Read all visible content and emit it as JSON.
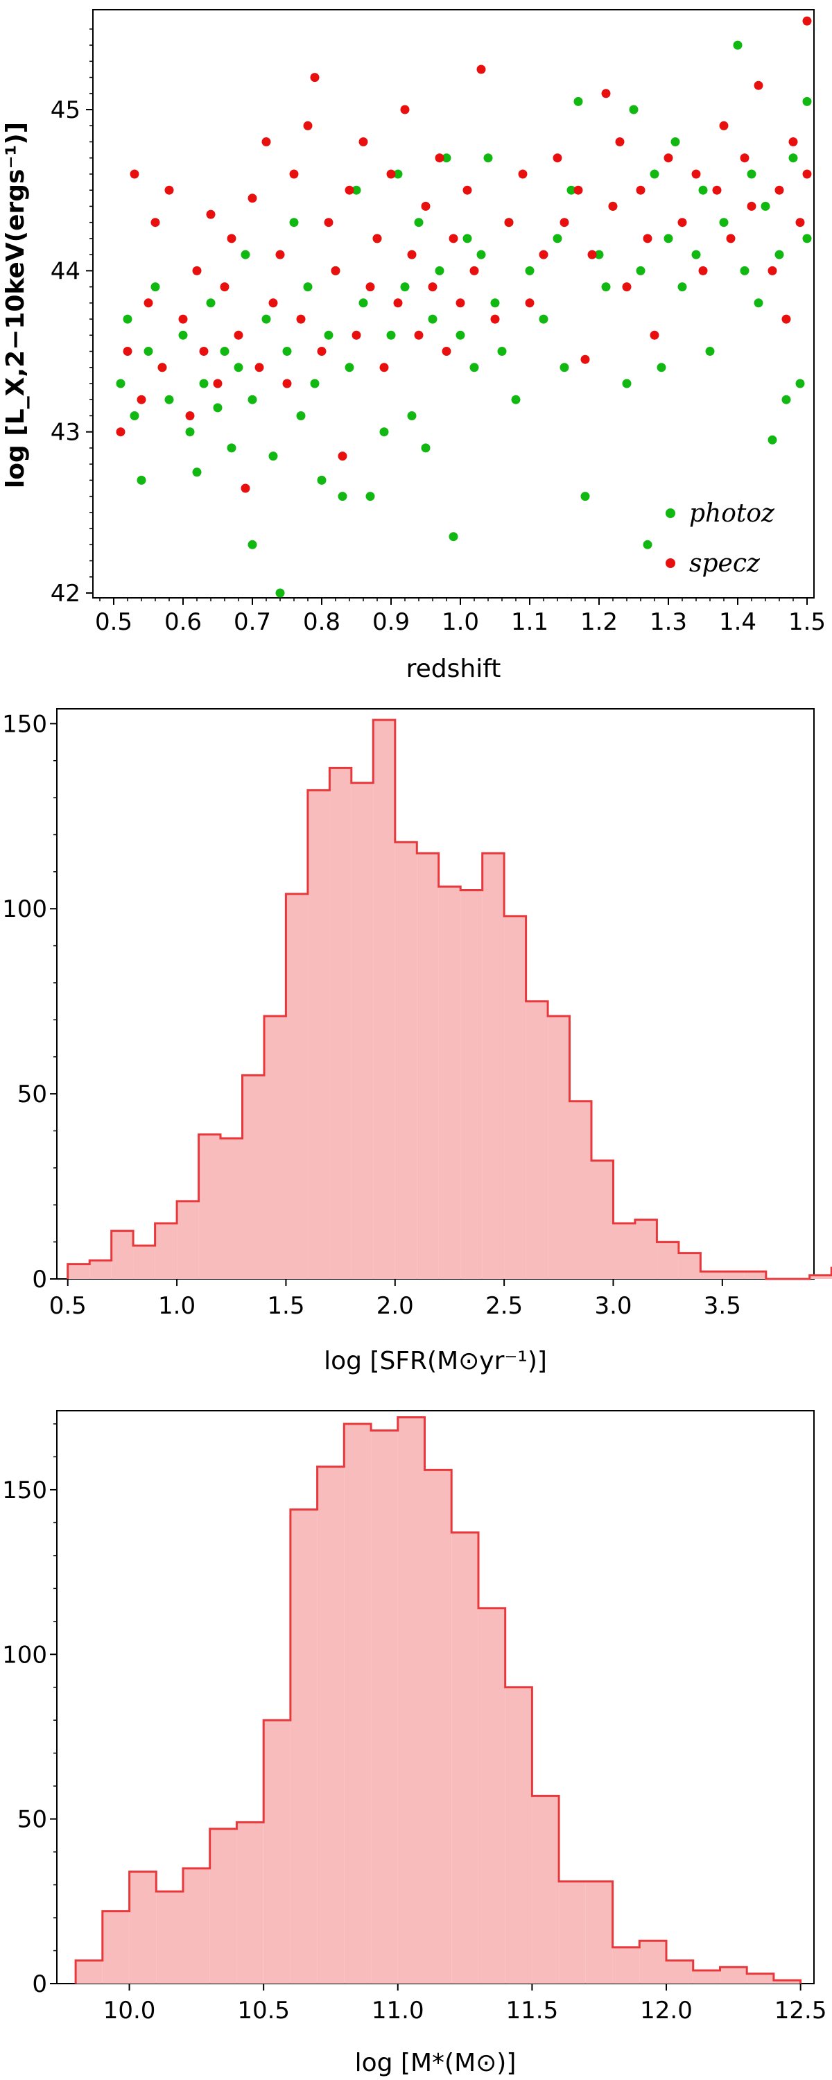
{
  "colors": {
    "photoz": "#11b811",
    "specz": "#e80f0f",
    "hist_fill": "#f8bcbc",
    "hist_edge": "#e8383c"
  },
  "chart_data": [
    {
      "type": "scatter",
      "xlabel": "redshift",
      "ylabel": "log [L_X,2−10keV(ergs⁻¹)]",
      "xlim": [
        0.47,
        1.51
      ],
      "ylim": [
        41.97,
        45.62
      ],
      "xticks": [
        "0.5",
        "0.6",
        "0.7",
        "0.8",
        "0.9",
        "1.0",
        "1.1",
        "1.2",
        "1.3",
        "1.4",
        "1.5"
      ],
      "yticks": [
        "42",
        "43",
        "44",
        "45"
      ],
      "legend": {
        "position": "bottom-right",
        "entries": [
          "photoz",
          "specz"
        ]
      },
      "grid": false,
      "series": [
        {
          "name": "photoz",
          "color": "#11b811",
          "points": [
            [
              0.51,
              43.3
            ],
            [
              0.52,
              43.7
            ],
            [
              0.53,
              43.1
            ],
            [
              0.54,
              42.7
            ],
            [
              0.55,
              43.5
            ],
            [
              0.56,
              43.9
            ],
            [
              0.57,
              43.4
            ],
            [
              0.58,
              43.2
            ],
            [
              0.6,
              43.6
            ],
            [
              0.61,
              43.0
            ],
            [
              0.62,
              42.75
            ],
            [
              0.63,
              43.3
            ],
            [
              0.64,
              43.8
            ],
            [
              0.65,
              43.15
            ],
            [
              0.66,
              43.5
            ],
            [
              0.67,
              42.9
            ],
            [
              0.68,
              43.4
            ],
            [
              0.69,
              44.1
            ],
            [
              0.7,
              42.3
            ],
            [
              0.7,
              43.2
            ],
            [
              0.72,
              43.7
            ],
            [
              0.73,
              42.85
            ],
            [
              0.74,
              42.0
            ],
            [
              0.75,
              43.5
            ],
            [
              0.76,
              44.3
            ],
            [
              0.77,
              43.1
            ],
            [
              0.78,
              43.9
            ],
            [
              0.79,
              43.3
            ],
            [
              0.8,
              42.7
            ],
            [
              0.81,
              43.6
            ],
            [
              0.82,
              44.0
            ],
            [
              0.83,
              42.6
            ],
            [
              0.84,
              43.4
            ],
            [
              0.85,
              44.5
            ],
            [
              0.86,
              43.8
            ],
            [
              0.87,
              42.6
            ],
            [
              0.88,
              44.2
            ],
            [
              0.89,
              43.0
            ],
            [
              0.9,
              43.6
            ],
            [
              0.91,
              44.6
            ],
            [
              0.92,
              43.9
            ],
            [
              0.93,
              43.1
            ],
            [
              0.94,
              44.3
            ],
            [
              0.95,
              42.9
            ],
            [
              0.96,
              43.7
            ],
            [
              0.97,
              44.0
            ],
            [
              0.98,
              44.7
            ],
            [
              0.99,
              42.35
            ],
            [
              1.0,
              43.6
            ],
            [
              1.01,
              44.2
            ],
            [
              1.02,
              43.4
            ],
            [
              1.03,
              44.1
            ],
            [
              1.04,
              44.7
            ],
            [
              1.05,
              43.8
            ],
            [
              1.06,
              43.5
            ],
            [
              1.07,
              44.3
            ],
            [
              1.08,
              43.2
            ],
            [
              1.1,
              44.0
            ],
            [
              1.12,
              43.7
            ],
            [
              1.14,
              44.2
            ],
            [
              1.15,
              43.4
            ],
            [
              1.16,
              44.5
            ],
            [
              1.17,
              45.05
            ],
            [
              1.18,
              42.6
            ],
            [
              1.2,
              44.1
            ],
            [
              1.21,
              43.9
            ],
            [
              1.22,
              44.4
            ],
            [
              1.24,
              43.3
            ],
            [
              1.25,
              45.0
            ],
            [
              1.26,
              44.0
            ],
            [
              1.27,
              42.3
            ],
            [
              1.28,
              44.6
            ],
            [
              1.29,
              43.4
            ],
            [
              1.3,
              44.2
            ],
            [
              1.31,
              44.8
            ],
            [
              1.32,
              43.9
            ],
            [
              1.34,
              44.1
            ],
            [
              1.35,
              44.5
            ],
            [
              1.36,
              43.5
            ],
            [
              1.38,
              44.3
            ],
            [
              1.4,
              45.4
            ],
            [
              1.41,
              44.0
            ],
            [
              1.42,
              44.6
            ],
            [
              1.43,
              43.8
            ],
            [
              1.44,
              44.4
            ],
            [
              1.45,
              42.95
            ],
            [
              1.46,
              44.1
            ],
            [
              1.47,
              43.2
            ],
            [
              1.48,
              44.7
            ],
            [
              1.49,
              43.3
            ],
            [
              1.5,
              45.05
            ],
            [
              1.5,
              44.2
            ]
          ]
        },
        {
          "name": "specz",
          "color": "#e80f0f",
          "points": [
            [
              0.51,
              43.0
            ],
            [
              0.52,
              43.5
            ],
            [
              0.53,
              44.6
            ],
            [
              0.54,
              43.2
            ],
            [
              0.55,
              43.8
            ],
            [
              0.56,
              44.3
            ],
            [
              0.57,
              43.4
            ],
            [
              0.58,
              44.5
            ],
            [
              0.6,
              43.7
            ],
            [
              0.61,
              43.1
            ],
            [
              0.62,
              44.0
            ],
            [
              0.63,
              43.5
            ],
            [
              0.64,
              44.35
            ],
            [
              0.65,
              43.3
            ],
            [
              0.66,
              43.9
            ],
            [
              0.67,
              44.2
            ],
            [
              0.68,
              43.6
            ],
            [
              0.69,
              42.65
            ],
            [
              0.7,
              44.45
            ],
            [
              0.71,
              43.4
            ],
            [
              0.72,
              44.8
            ],
            [
              0.73,
              43.8
            ],
            [
              0.74,
              44.1
            ],
            [
              0.75,
              43.3
            ],
            [
              0.76,
              44.6
            ],
            [
              0.77,
              43.7
            ],
            [
              0.78,
              44.9
            ],
            [
              0.79,
              45.2
            ],
            [
              0.8,
              43.5
            ],
            [
              0.81,
              44.3
            ],
            [
              0.82,
              44.0
            ],
            [
              0.83,
              42.85
            ],
            [
              0.84,
              44.5
            ],
            [
              0.85,
              43.6
            ],
            [
              0.86,
              44.8
            ],
            [
              0.87,
              43.9
            ],
            [
              0.88,
              44.2
            ],
            [
              0.89,
              43.4
            ],
            [
              0.9,
              44.6
            ],
            [
              0.91,
              43.8
            ],
            [
              0.92,
              45.0
            ],
            [
              0.93,
              44.1
            ],
            [
              0.94,
              43.6
            ],
            [
              0.95,
              44.4
            ],
            [
              0.96,
              43.9
            ],
            [
              0.97,
              44.7
            ],
            [
              0.98,
              43.5
            ],
            [
              0.99,
              44.2
            ],
            [
              1.0,
              43.8
            ],
            [
              1.01,
              44.5
            ],
            [
              1.02,
              44.0
            ],
            [
              1.03,
              45.25
            ],
            [
              1.05,
              43.7
            ],
            [
              1.07,
              44.3
            ],
            [
              1.09,
              44.6
            ],
            [
              1.1,
              43.8
            ],
            [
              1.12,
              44.1
            ],
            [
              1.14,
              44.7
            ],
            [
              1.15,
              44.3
            ],
            [
              1.17,
              44.5
            ],
            [
              1.18,
              43.45
            ],
            [
              1.19,
              44.1
            ],
            [
              1.21,
              45.1
            ],
            [
              1.22,
              44.4
            ],
            [
              1.23,
              44.8
            ],
            [
              1.24,
              43.9
            ],
            [
              1.26,
              44.5
            ],
            [
              1.27,
              44.2
            ],
            [
              1.28,
              43.6
            ],
            [
              1.3,
              44.7
            ],
            [
              1.32,
              44.3
            ],
            [
              1.34,
              44.6
            ],
            [
              1.35,
              44.0
            ],
            [
              1.37,
              44.5
            ],
            [
              1.38,
              44.9
            ],
            [
              1.39,
              44.2
            ],
            [
              1.41,
              44.7
            ],
            [
              1.42,
              44.4
            ],
            [
              1.43,
              45.15
            ],
            [
              1.45,
              44.0
            ],
            [
              1.46,
              44.5
            ],
            [
              1.47,
              43.7
            ],
            [
              1.48,
              44.8
            ],
            [
              1.49,
              44.3
            ],
            [
              1.5,
              45.55
            ],
            [
              1.5,
              44.6
            ]
          ]
        }
      ]
    },
    {
      "type": "bar",
      "xlabel": "log [SFR(M⊙yr⁻¹)]",
      "ylabel": "",
      "xlim": [
        0.45,
        3.92
      ],
      "ylim": [
        0,
        154
      ],
      "xticks": [
        "0.5",
        "1.0",
        "1.5",
        "2.0",
        "2.5",
        "3.0",
        "3.5"
      ],
      "yticks": [
        "0",
        "50",
        "100",
        "150"
      ],
      "bin_width": 0.1,
      "bin_start": 0.5,
      "values": [
        4,
        5,
        13,
        9,
        15,
        21,
        39,
        38,
        55,
        71,
        104,
        132,
        138,
        134,
        151,
        118,
        115,
        106,
        105,
        115,
        98,
        75,
        71,
        48,
        32,
        15,
        16,
        10,
        7,
        2,
        2,
        2,
        0,
        0,
        1,
        3
      ]
    },
    {
      "type": "bar",
      "xlabel": "log [M*(M⊙)]",
      "ylabel": "",
      "xlim": [
        9.73,
        12.55
      ],
      "ylim": [
        0,
        174
      ],
      "xticks": [
        "10.0",
        "10.5",
        "11.0",
        "11.5",
        "12.0",
        "12.5"
      ],
      "yticks": [
        "0",
        "50",
        "100",
        "150"
      ],
      "bin_width": 0.1,
      "bin_start": 9.8,
      "values": [
        7,
        22,
        34,
        28,
        35,
        47,
        49,
        80,
        144,
        157,
        170,
        168,
        172,
        156,
        137,
        114,
        90,
        57,
        31,
        31,
        11,
        13,
        7,
        4,
        5,
        3,
        1
      ]
    }
  ]
}
